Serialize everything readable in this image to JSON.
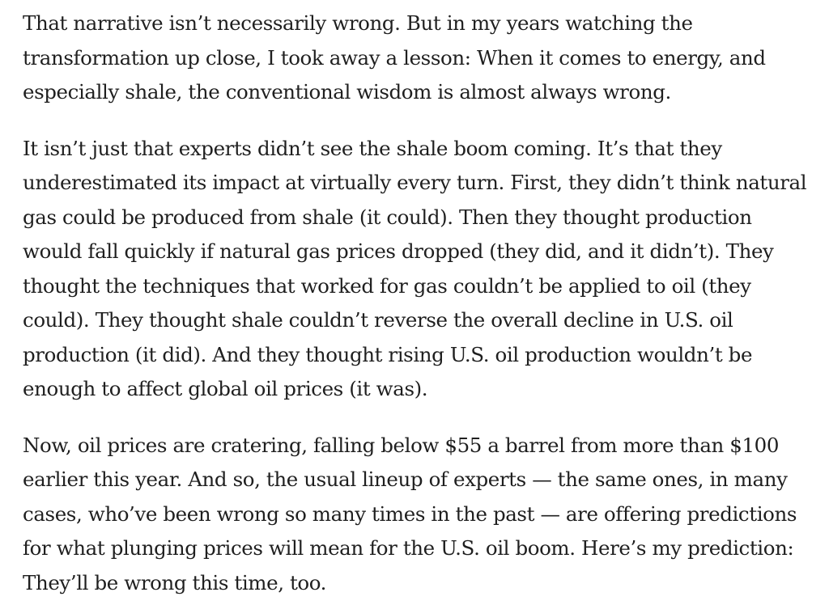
{
  "article": {
    "paragraphs": [
      {
        "lines": [
          "That narrative isn’t necessarily wrong. But in my years watching the",
          "transformation up close, I took away a lesson: When it comes to energy, and",
          "especially shale, the conventional wisdom is almost always wrong."
        ]
      },
      {
        "lines": [
          "It isn’t just that experts didn’t see the shale boom coming. It’s that they",
          "underestimated its impact at virtually every turn. First, they didn’t think natural",
          "gas could be produced from shale (it could). Then they thought production",
          "would fall quickly if natural gas prices dropped (they did, and it didn’t). They",
          "thought the techniques that worked for gas couldn’t be applied to oil (they",
          "could). They thought shale couldn’t reverse the overall decline in U.S. oil",
          "production (it did). And they thought rising U.S. oil production wouldn’t be",
          "enough to affect global oil prices (it was)."
        ]
      },
      {
        "lines": [
          "Now, oil prices are cratering, falling below $55 a barrel from more than $100",
          "earlier this year. And so, the usual lineup of experts — the same ones, in many",
          "cases, who’ve been wrong so many times in the past — are offering predictions",
          "for what plunging prices will mean for the U.S. oil boom. Here’s my prediction:",
          "They’ll be wrong this time, too."
        ]
      }
    ]
  }
}
